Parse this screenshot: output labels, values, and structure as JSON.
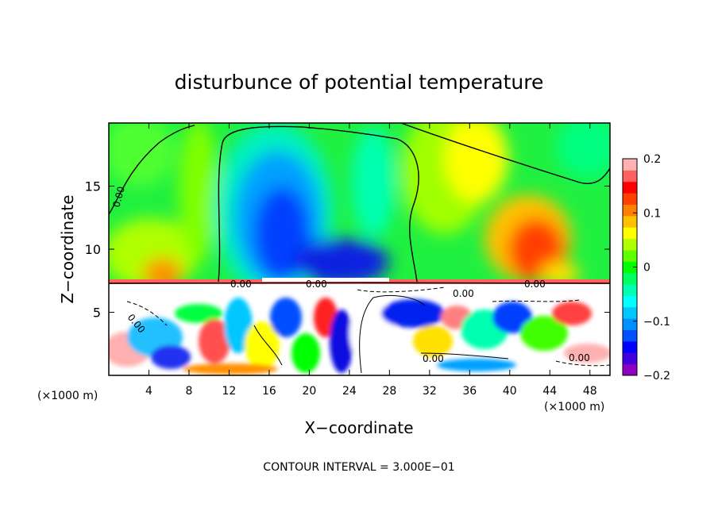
{
  "chart_data": {
    "type": "heatmap",
    "title": "disturbunce of potential temperature",
    "xlabel": "X−coordinate",
    "ylabel": "Z−coordinate",
    "x_unit_left": "(×1000 m)",
    "x_unit_right": "(×1000 m)",
    "xlim": [
      0,
      50
    ],
    "ylim": [
      0,
      20
    ],
    "x_ticks": [
      4,
      8,
      12,
      16,
      20,
      24,
      28,
      32,
      36,
      40,
      44,
      48
    ],
    "y_ticks": [
      5,
      10,
      15
    ],
    "colorbar": {
      "range": [
        -0.2,
        0.2
      ],
      "ticks": [
        0.2,
        0.1,
        0,
        -0.1,
        -0.2
      ],
      "tick_labels": [
        "0.2",
        "0.1",
        "0",
        "−0.1",
        "−0.2"
      ],
      "colors": [
        "#9000c0",
        "#4000e0",
        "#0000ff",
        "#0050ff",
        "#0090ff",
        "#00c8ff",
        "#00ffff",
        "#00ffb0",
        "#00ff60",
        "#00ff00",
        "#60ff00",
        "#b0ff00",
        "#ffff00",
        "#ffc000",
        "#ff8000",
        "#ff4000",
        "#ff0000",
        "#ff6060",
        "#ffb0b0"
      ]
    },
    "contour_labels": [
      "0.00",
      "0.00",
      "0.00",
      "0.00",
      "0.00",
      "0.00",
      "0.00",
      "0.00"
    ],
    "footer": "CONTOUR INTERVAL = 3.000E−01"
  }
}
